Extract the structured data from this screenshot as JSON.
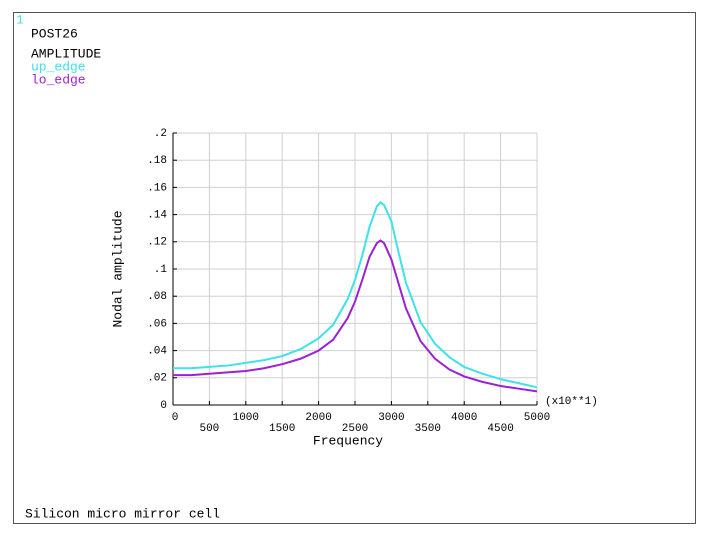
{
  "chart_data": {
    "type": "line",
    "window_number": "1",
    "title": "POST26",
    "subtitle": "AMPLITUDE",
    "caption": "Silicon micro mirror cell",
    "xlabel": "Frequency",
    "ylabel": "Nodal amplitude",
    "x_multiplier": "(x10**1)",
    "x": [
      0,
      250,
      500,
      750,
      1000,
      1250,
      1500,
      1750,
      2000,
      2200,
      2400,
      2500,
      2600,
      2700,
      2800,
      2850,
      2900,
      3000,
      3100,
      3200,
      3400,
      3600,
      3800,
      4000,
      4250,
      4500,
      4750,
      5000
    ],
    "series": [
      {
        "name": "up_edge",
        "color": "#3ee2ea",
        "values": [
          0.027,
          0.027,
          0.028,
          0.029,
          0.031,
          0.033,
          0.036,
          0.041,
          0.049,
          0.059,
          0.078,
          0.092,
          0.11,
          0.131,
          0.146,
          0.149,
          0.147,
          0.135,
          0.112,
          0.09,
          0.061,
          0.045,
          0.035,
          0.028,
          0.023,
          0.019,
          0.016,
          0.013
        ]
      },
      {
        "name": "lo_edge",
        "color": "#9b22d2",
        "values": [
          0.022,
          0.022,
          0.023,
          0.024,
          0.025,
          0.027,
          0.03,
          0.034,
          0.04,
          0.048,
          0.064,
          0.076,
          0.092,
          0.109,
          0.119,
          0.121,
          0.119,
          0.107,
          0.089,
          0.071,
          0.047,
          0.034,
          0.026,
          0.021,
          0.017,
          0.014,
          0.012,
          0.01
        ]
      }
    ],
    "xlim": [
      0,
      5000
    ],
    "xticks": [
      0,
      500,
      1000,
      1500,
      2000,
      2500,
      3000,
      3500,
      4000,
      4500,
      5000
    ],
    "ylim": [
      0,
      0.2
    ],
    "yticks": [
      0,
      {
        "value": 0.02,
        "label": ".02"
      },
      {
        "value": 0.04,
        "label": ".04"
      },
      {
        "value": 0.06,
        "label": ".06"
      },
      {
        "value": 0.08,
        "label": ".08"
      },
      {
        "value": 0.1,
        "label": ".1"
      },
      {
        "value": 0.12,
        "label": ".12"
      },
      {
        "value": 0.14,
        "label": ".14"
      },
      {
        "value": 0.16,
        "label": ".16"
      },
      {
        "value": 0.18,
        "label": ".18"
      },
      {
        "value": 0.2,
        "label": ".2"
      }
    ],
    "grid": true
  }
}
